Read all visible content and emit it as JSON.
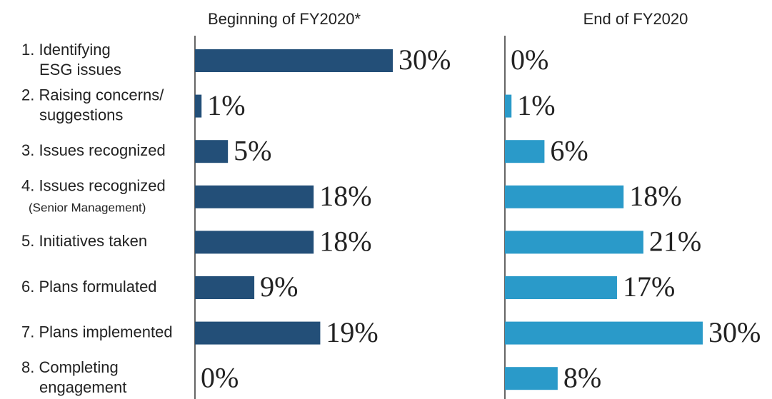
{
  "chart_data": [
    {
      "type": "bar",
      "title": "Beginning of FY2020*",
      "categories": [
        [
          "1. Identifying",
          "ESG issues"
        ],
        [
          "2. Raising concerns/",
          "suggestions"
        ],
        [
          "3. Issues recognized"
        ],
        [
          "4. Issues recognized",
          "(Senior Management)"
        ],
        [
          "5. Initiatives taken"
        ],
        [
          "6. Plans formulated"
        ],
        [
          "7. Plans implemented"
        ],
        [
          "8. Completing",
          "engagement"
        ]
      ],
      "values": [
        30,
        1,
        5,
        18,
        18,
        9,
        19,
        0
      ],
      "value_labels": [
        "30%",
        "1%",
        "5%",
        "18%",
        "18%",
        "9%",
        "19%",
        "0%"
      ],
      "color": "#234f78",
      "xlim": [
        0,
        30
      ]
    },
    {
      "type": "bar",
      "title": "End of FY2020",
      "values": [
        0,
        1,
        6,
        18,
        21,
        17,
        30,
        8
      ],
      "value_labels": [
        "0%",
        "1%",
        "6%",
        "18%",
        "21%",
        "17%",
        "30%",
        "8%"
      ],
      "color": "#2a9ac9",
      "xlim": [
        0,
        30
      ]
    }
  ]
}
